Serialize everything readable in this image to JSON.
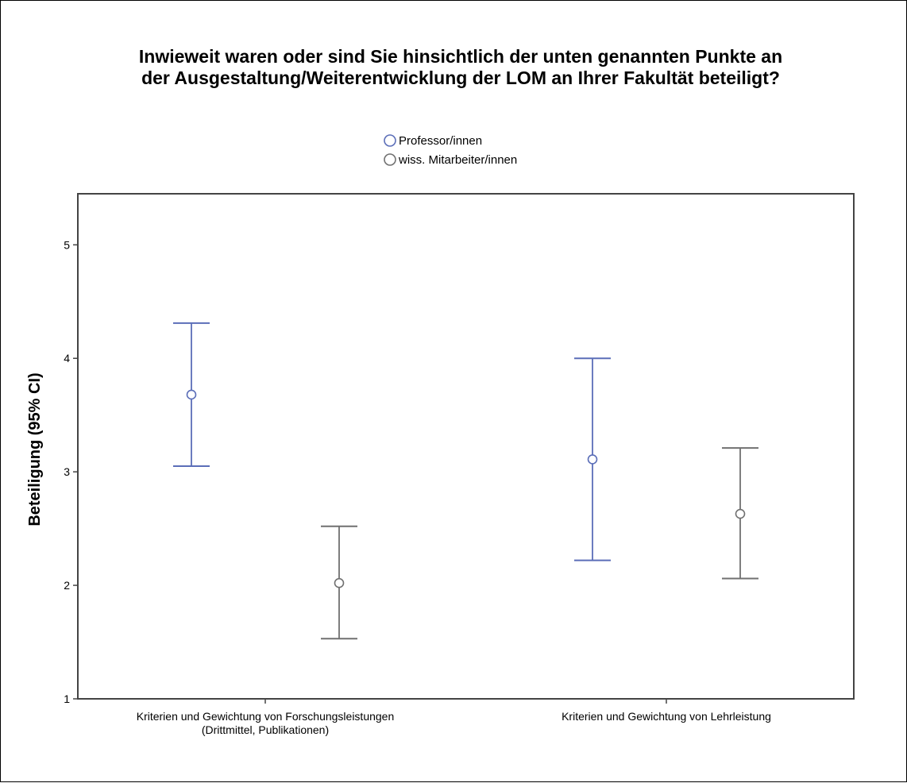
{
  "chart_data": {
    "type": "errorbar",
    "title": [
      "Inwieweit waren oder sind Sie hinsichtlich der unten genannten Punkte an",
      "der Ausgestaltung/Weiterentwicklung der LOM an Ihrer Fakultät beteiligt?"
    ],
    "ylabel": "Beteiligung (95% CI)",
    "xlabel": "",
    "ylim": [
      1,
      5.45
    ],
    "yticks": [
      1,
      2,
      3,
      4,
      5
    ],
    "grid": false,
    "legend_position": "top-center",
    "categories": [
      [
        "Kriterien und Gewichtung von Forschungsleistungen",
        "(Drittmittel, Publikationen)"
      ],
      [
        "Kriterien und Gewichtung von Lehrleistung"
      ]
    ],
    "series": [
      {
        "name": "Professor/innen",
        "color": "#5b6eb8",
        "mean": [
          3.68,
          3.11
        ],
        "ci_low": [
          3.05,
          2.22
        ],
        "ci_high": [
          4.31,
          4.0
        ]
      },
      {
        "name": "wiss. Mitarbeiter/innen",
        "color": "#707070",
        "mean": [
          2.02,
          2.63
        ],
        "ci_low": [
          1.53,
          2.06
        ],
        "ci_high": [
          2.52,
          3.21
        ]
      }
    ]
  }
}
